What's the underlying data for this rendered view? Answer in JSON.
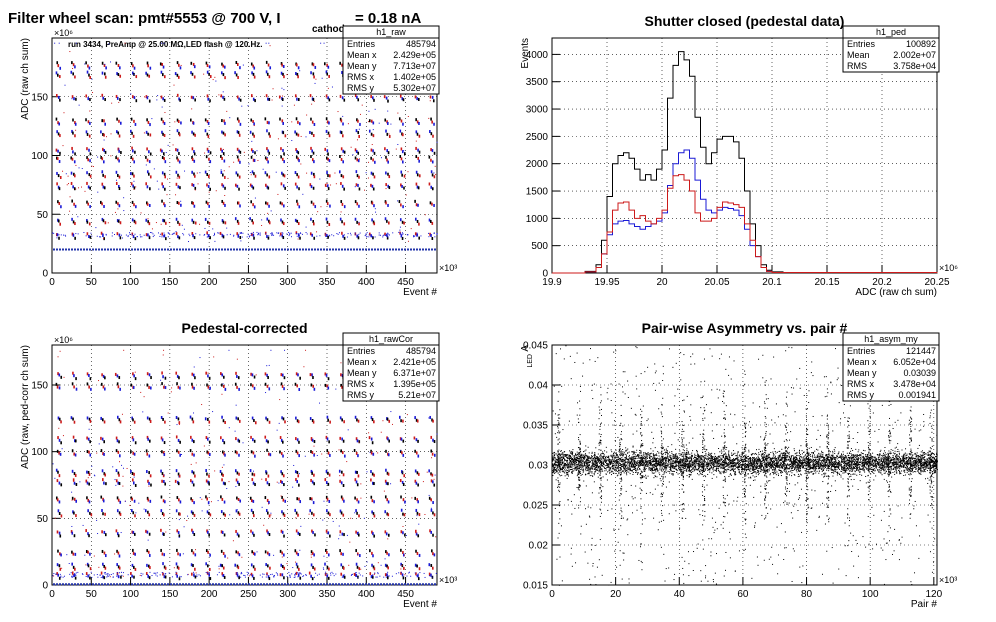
{
  "header": {
    "title_main": "Filter wheel scan: pmt#5553 @   700 V, I",
    "title_sub": "cathode",
    "title_tail": "= 0.18 nA"
  },
  "chart_data": [
    {
      "type": "scatter",
      "title": "",
      "xlabel": "Event #",
      "ylabel": "ADC (raw ch sum)",
      "x_multiplier": "×10³",
      "y_multiplier": "×10⁶",
      "xlim": [
        0,
        490000
      ],
      "ylim": [
        0,
        200000000
      ],
      "xticks": [
        0,
        50,
        100,
        150,
        200,
        250,
        300,
        350,
        400,
        450
      ],
      "yticks": [
        0,
        50,
        100,
        150
      ],
      "grid": true,
      "annotation": "run 3434, PreAmp @ 25.00 MΩ,LED flash @  120.Hz.",
      "stats": {
        "name": "h1_raw",
        "rows": [
          [
            "Entries",
            "485794"
          ],
          [
            "Mean x",
            "2.429e+05"
          ],
          [
            "Mean y",
            "7.713e+07"
          ],
          [
            "RMS x",
            "1.402e+05"
          ],
          [
            "RMS y",
            "5.302e+07"
          ]
        ]
      },
      "baseline": 20,
      "levels": [
        33,
        45,
        60,
        75,
        85,
        98,
        105,
        120,
        130,
        150,
        170,
        178
      ],
      "cycle_kevents": 19
    },
    {
      "type": "line",
      "title": "Shutter closed (pedestal data)",
      "xlabel": "ADC (raw ch sum)",
      "ylabel": "Events",
      "x_multiplier": "×10⁶",
      "xlim": [
        19.9,
        20.25
      ],
      "ylim": [
        0,
        4300
      ],
      "xticks": [
        19.9,
        19.95,
        20,
        20.05,
        20.1,
        20.15,
        20.2,
        20.25
      ],
      "xtick_labels": [
        "19.9",
        "19.95",
        "20",
        "20.05",
        "20.1",
        "20.15",
        "20.2",
        "20.25"
      ],
      "yticks": [
        0,
        500,
        1000,
        1500,
        2000,
        2500,
        3000,
        3500,
        4000
      ],
      "grid": true,
      "stats": {
        "name": "h1_ped",
        "rows": [
          [
            "Entries",
            "100892"
          ],
          [
            "Mean",
            "2.002e+07"
          ],
          [
            "RMS",
            "3.758e+04"
          ]
        ]
      },
      "series": [
        {
          "color": "#000000",
          "x": [
            19.9,
            19.925,
            19.93,
            19.94,
            19.945,
            19.95,
            19.955,
            19.96,
            19.965,
            19.97,
            19.975,
            19.98,
            19.985,
            19.99,
            19.995,
            20.0,
            20.005,
            20.01,
            20.015,
            20.02,
            20.025,
            20.03,
            20.035,
            20.04,
            20.045,
            20.05,
            20.055,
            20.06,
            20.065,
            20.07,
            20.075,
            20.08,
            20.085,
            20.09,
            20.095,
            20.1,
            20.11,
            20.12,
            20.13,
            20.25
          ],
          "y": [
            0,
            0,
            30,
            150,
            600,
            1400,
            2000,
            2150,
            2200,
            2100,
            1900,
            1700,
            1800,
            1700,
            1900,
            2250,
            3200,
            3800,
            4050,
            3900,
            3600,
            2850,
            2300,
            2000,
            2200,
            2450,
            2500,
            2500,
            2400,
            2100,
            1500,
            900,
            500,
            150,
            50,
            20,
            10,
            5,
            2,
            0
          ]
        },
        {
          "color": "#1a1ad6",
          "x": [
            19.9,
            19.93,
            19.94,
            19.945,
            19.95,
            19.955,
            19.96,
            19.965,
            19.97,
            19.975,
            19.98,
            19.985,
            19.99,
            19.995,
            20.0,
            20.005,
            20.01,
            20.015,
            20.02,
            20.025,
            20.03,
            20.035,
            20.04,
            20.045,
            20.05,
            20.055,
            20.06,
            20.065,
            20.07,
            20.075,
            20.08,
            20.085,
            20.09,
            20.095,
            20.1,
            20.25
          ],
          "y": [
            0,
            20,
            100,
            350,
            700,
            900,
            950,
            960,
            900,
            850,
            800,
            850,
            900,
            950,
            1100,
            1600,
            2000,
            2200,
            2250,
            2100,
            1700,
            1350,
            1150,
            1100,
            1150,
            1200,
            1180,
            1150,
            1050,
            800,
            500,
            300,
            100,
            30,
            10,
            0
          ]
        },
        {
          "color": "#cc1a1a",
          "x": [
            19.9,
            19.93,
            19.94,
            19.945,
            19.95,
            19.955,
            19.96,
            19.965,
            19.97,
            19.975,
            19.98,
            19.985,
            19.99,
            19.995,
            20.0,
            20.005,
            20.01,
            20.015,
            20.02,
            20.025,
            20.03,
            20.035,
            20.04,
            20.045,
            20.05,
            20.055,
            20.06,
            20.065,
            20.07,
            20.075,
            20.08,
            20.085,
            20.09,
            20.095,
            20.1,
            20.25
          ],
          "y": [
            0,
            20,
            100,
            350,
            750,
            1150,
            1280,
            1300,
            1150,
            1000,
            1050,
            950,
            900,
            1000,
            1150,
            1550,
            1780,
            1800,
            1700,
            1500,
            1100,
            950,
            950,
            1000,
            1200,
            1300,
            1280,
            1250,
            1200,
            900,
            600,
            300,
            100,
            30,
            10,
            0
          ]
        }
      ]
    },
    {
      "type": "scatter",
      "title": "Pedestal-corrected",
      "xlabel": "Event #",
      "ylabel": "ADC (raw, ped-corr ch sum)",
      "x_multiplier": "×10³",
      "y_multiplier": "×10⁶",
      "xlim": [
        0,
        490000
      ],
      "ylim": [
        0,
        180000000
      ],
      "xticks": [
        0,
        50,
        100,
        150,
        200,
        250,
        300,
        350,
        400,
        450
      ],
      "yticks": [
        0,
        50,
        100,
        150
      ],
      "grid": true,
      "stats": {
        "name": "h1_rawCor",
        "rows": [
          [
            "Entries",
            "485794"
          ],
          [
            "Mean x",
            "2.421e+05"
          ],
          [
            "Mean y",
            "6.371e+07"
          ],
          [
            "RMS x",
            "1.395e+05"
          ],
          [
            "RMS y",
            "5.21e+07"
          ]
        ]
      },
      "baseline": 0,
      "levels": [
        8,
        15,
        25,
        40,
        55,
        65,
        78,
        85,
        100,
        110,
        125,
        150,
        158
      ],
      "cycle_kevents": 19
    },
    {
      "type": "scatter",
      "title": "Pair-wise Asymmetry vs. pair #",
      "xlabel": "Pair #",
      "ylabel": "A",
      "ylabel_sub": "LED",
      "x_multiplier": "×10³",
      "xlim": [
        0,
        121
      ],
      "ylim": [
        0.015,
        0.045
      ],
      "xticks": [
        0,
        20,
        40,
        60,
        80,
        100,
        120
      ],
      "yticks": [
        0.015,
        0.02,
        0.025,
        0.03,
        0.035,
        0.04,
        0.045
      ],
      "ytick_labels": [
        "0.015",
        "0.02",
        "0.025",
        "0.03",
        "0.035",
        "0.04",
        "0.045"
      ],
      "grid": true,
      "stats": {
        "name": "h1_asym_my",
        "rows": [
          [
            "Entries",
            "121447"
          ],
          [
            "Mean x",
            "6.052e+04"
          ],
          [
            "Mean y",
            "0.03039"
          ],
          [
            "RMS x",
            "3.478e+04"
          ],
          [
            "RMS y",
            "0.001941"
          ]
        ]
      },
      "band_center": 0.0303,
      "spike_spacing_k": 6.5
    }
  ]
}
